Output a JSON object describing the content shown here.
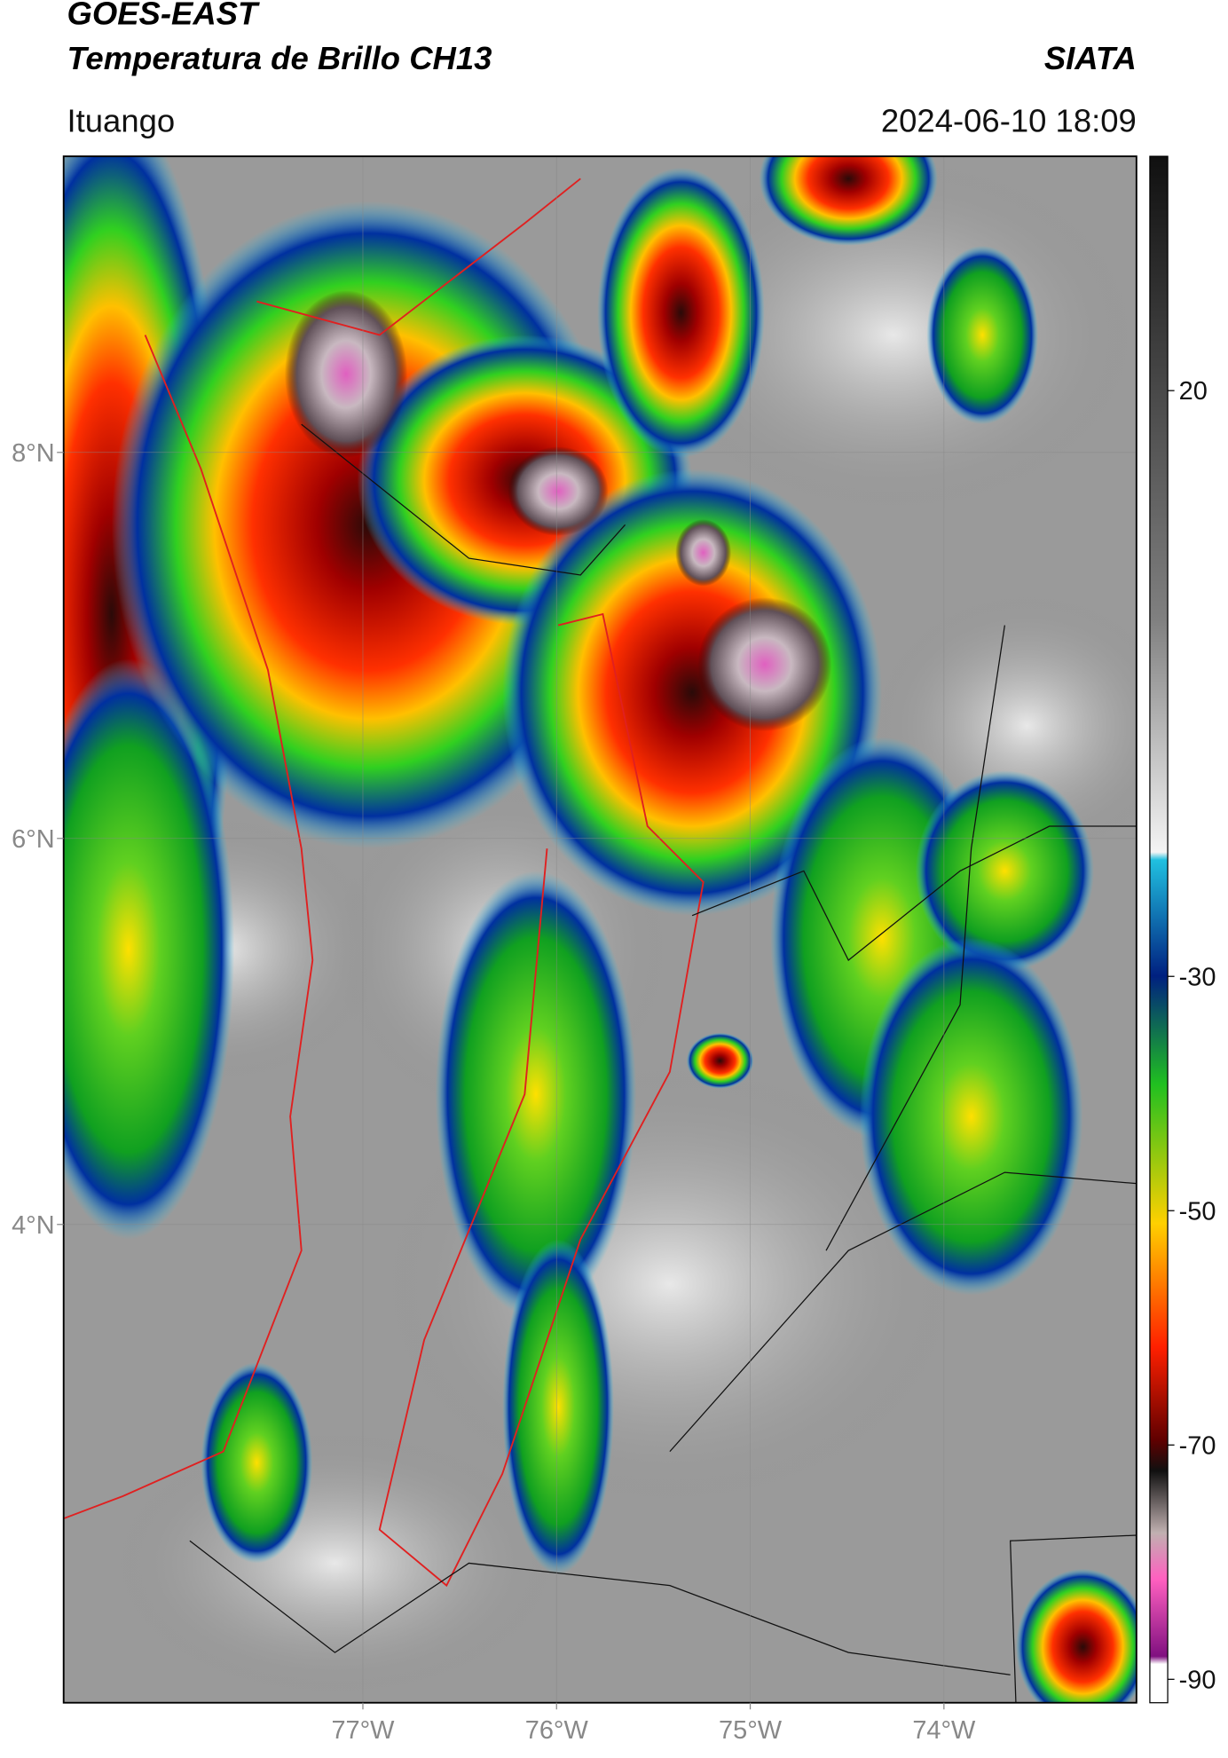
{
  "header": {
    "title": "GOES-EAST",
    "subtitle": "Temperatura de Brillo CH13",
    "source": "SIATA",
    "location": "Ituango",
    "timestamp": "2024-06-10 18:09"
  },
  "map": {
    "xlim": [
      -78.545,
      -73.006
    ],
    "ylim": [
      1.522,
      9.534
    ],
    "xticks": [
      {
        "value": -77,
        "label": "77°W"
      },
      {
        "value": -76,
        "label": "76°W"
      },
      {
        "value": -75,
        "label": "75°W"
      },
      {
        "value": -74,
        "label": "74°W"
      }
    ],
    "yticks": [
      {
        "value": 8,
        "label": "8°N"
      },
      {
        "value": 6,
        "label": "6°N"
      },
      {
        "value": 4,
        "label": "4°N"
      }
    ],
    "grid": true
  },
  "colorbar": {
    "clim": [
      -92,
      40
    ],
    "ticks": [
      20,
      -30,
      -50,
      -70,
      -90
    ]
  }
}
